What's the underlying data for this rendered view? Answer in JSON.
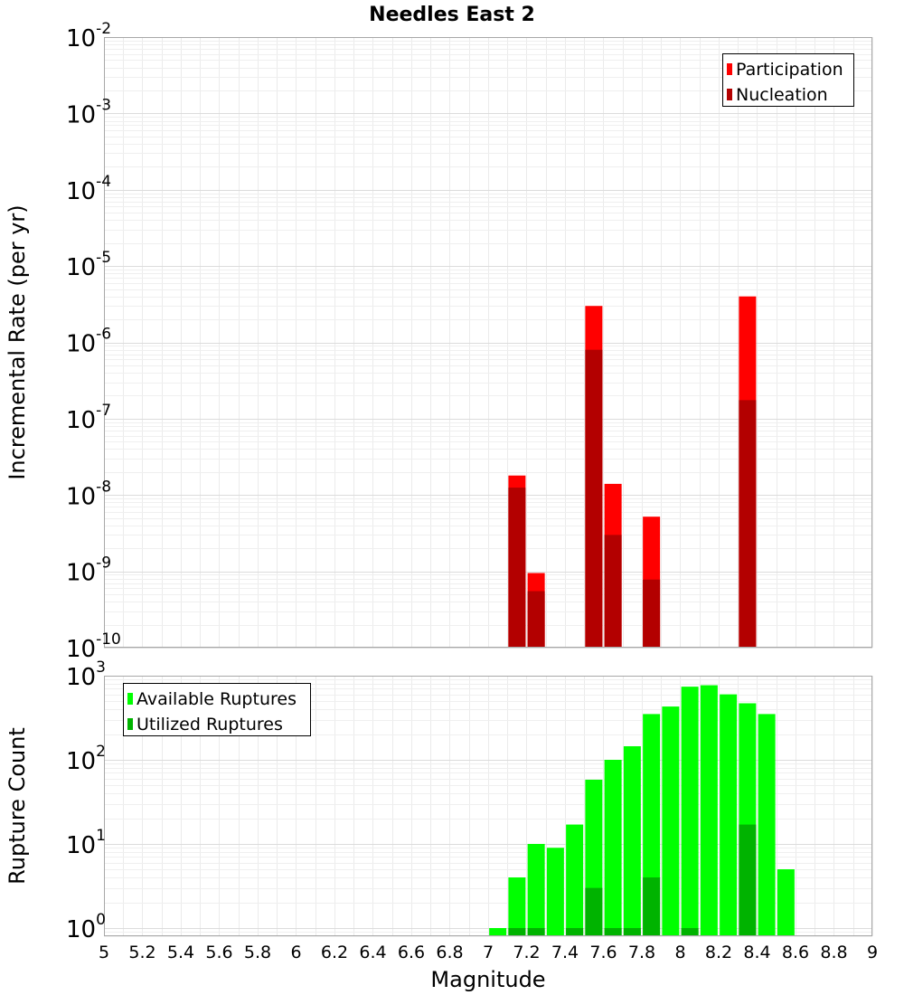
{
  "chart_data": [
    {
      "type": "bar",
      "title": "Needles East 2",
      "xlabel": "",
      "ylabel": "Incremental Rate (per yr)",
      "yscale": "log",
      "xlim": [
        5,
        9
      ],
      "ylim": [
        1e-10,
        0.01
      ],
      "grid": true,
      "legend_position": "top-right",
      "x": [
        7.15,
        7.25,
        7.55,
        7.65,
        7.85,
        8.35
      ],
      "series": [
        {
          "name": "Participation",
          "color": "#ff0000",
          "values": [
            1.8e-08,
            9.5e-10,
            3e-06,
            1.4e-08,
            5.2e-09,
            4e-06
          ]
        },
        {
          "name": "Nucleation",
          "color": "#b30000",
          "values": [
            1.25e-08,
            5.5e-10,
            8e-07,
            3e-09,
            7.8e-10,
            1.75e-07
          ]
        }
      ],
      "y_ticks": [
        {
          "base": "10",
          "exp": "-10"
        },
        {
          "base": "10",
          "exp": "-9"
        },
        {
          "base": "10",
          "exp": "-8"
        },
        {
          "base": "10",
          "exp": "-7"
        },
        {
          "base": "10",
          "exp": "-6"
        },
        {
          "base": "10",
          "exp": "-5"
        },
        {
          "base": "10",
          "exp": "-4"
        },
        {
          "base": "10",
          "exp": "-3"
        },
        {
          "base": "10",
          "exp": "-2"
        }
      ]
    },
    {
      "type": "bar",
      "title": "",
      "xlabel": "Magnitude",
      "ylabel": "Rupture Count",
      "yscale": "log",
      "xlim": [
        5,
        9
      ],
      "ylim": [
        0.8,
        1000
      ],
      "grid": true,
      "legend_position": "top-left",
      "x": [
        7.05,
        7.15,
        7.25,
        7.35,
        7.45,
        7.55,
        7.65,
        7.75,
        7.85,
        7.95,
        8.05,
        8.15,
        8.25,
        8.35,
        8.45,
        8.55
      ],
      "series": [
        {
          "name": "Available Ruptures",
          "color": "#00ff00",
          "values": [
            1,
            4,
            10,
            9,
            17,
            58,
            100,
            145,
            350,
            430,
            740,
            770,
            600,
            470,
            350,
            5
          ]
        },
        {
          "name": "Utilized Ruptures",
          "color": "#00b300",
          "values": [
            0,
            1,
            1,
            0,
            1,
            3,
            1,
            1,
            4,
            0,
            1,
            0,
            0,
            17,
            0,
            0
          ]
        }
      ],
      "y_ticks": [
        {
          "base": "10",
          "exp": "0"
        },
        {
          "base": "10",
          "exp": "1"
        },
        {
          "base": "10",
          "exp": "2"
        },
        {
          "base": "10",
          "exp": "3"
        }
      ],
      "x_ticks": [
        "5",
        "5.2",
        "5.4",
        "5.6",
        "5.8",
        "6",
        "6.2",
        "6.4",
        "6.6",
        "6.8",
        "7",
        "7.2",
        "7.4",
        "7.6",
        "7.8",
        "8",
        "8.2",
        "8.4",
        "8.6",
        "8.8",
        "9"
      ]
    }
  ]
}
